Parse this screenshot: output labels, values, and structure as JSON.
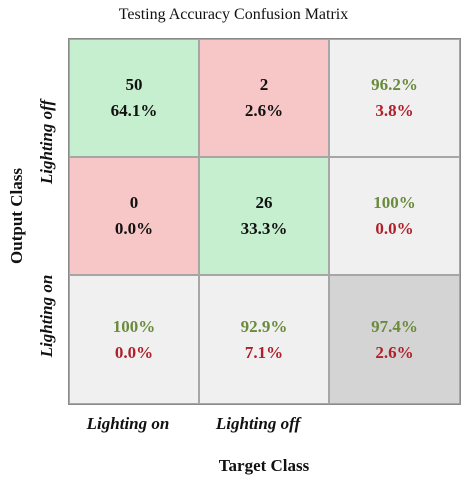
{
  "chart_data": {
    "type": "heatmap",
    "title": "Testing Accuracy Confusion Matrix",
    "xlabel": "Target Class",
    "ylabel": "Output Class",
    "x_categories": [
      "Lighting on",
      "Lighting off"
    ],
    "y_categories": [
      "Lighting off",
      "Lighting on"
    ],
    "cells": [
      [
        {
          "count": "50",
          "percent": "64.1%"
        },
        {
          "count": "2",
          "percent": "2.6%"
        }
      ],
      [
        {
          "count": "0",
          "percent": "0.0%"
        },
        {
          "count": "26",
          "percent": "33.3%"
        }
      ]
    ],
    "row_summary": [
      {
        "correct": "96.2%",
        "error": "3.8%"
      },
      {
        "correct": "100%",
        "error": "0.0%"
      }
    ],
    "col_summary": [
      {
        "correct": "100%",
        "error": "0.0%"
      },
      {
        "correct": "92.9%",
        "error": "7.1%"
      }
    ],
    "overall": {
      "correct": "97.4%",
      "error": "2.6%"
    },
    "colors": {
      "correct": "#c6efcf",
      "wrong": "#f7c6c6",
      "summary": "#f0f0f0",
      "overall": "#d4d4d4",
      "good_text": "#6a8a3c",
      "bad_text": "#b0202a"
    }
  }
}
